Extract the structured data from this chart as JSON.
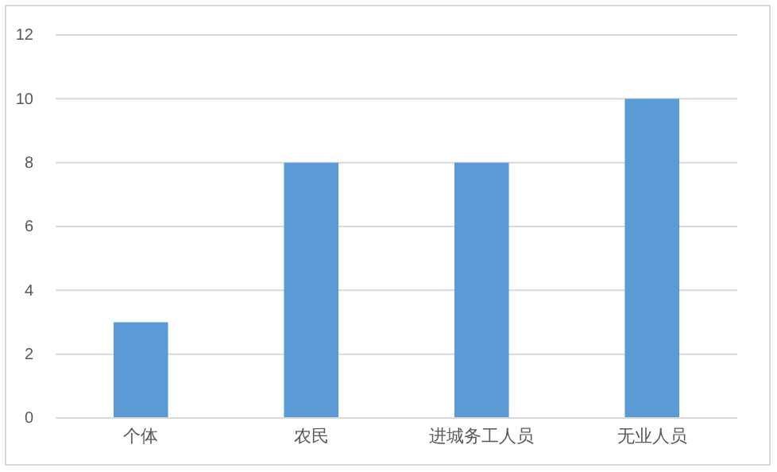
{
  "chart_data": {
    "type": "bar",
    "categories": [
      "个体",
      "农民",
      "进城务工人员",
      "无业人员"
    ],
    "values": [
      3,
      8,
      8,
      10
    ],
    "color": "#5b9bd5",
    "ylim": [
      0,
      12
    ],
    "yticks": [
      0,
      2,
      4,
      6,
      8,
      10,
      12
    ],
    "grid": "y"
  }
}
